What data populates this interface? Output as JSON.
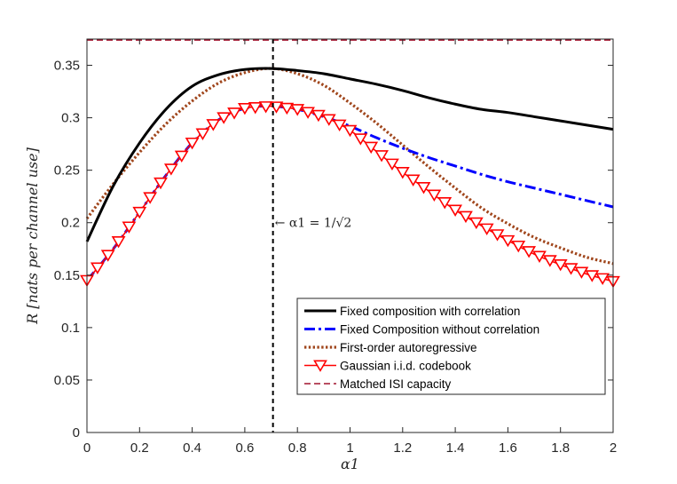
{
  "chart_data": {
    "type": "line",
    "xlabel": "α1",
    "ylabel": "R [nats per channel use]",
    "xlim": [
      0,
      2
    ],
    "ylim": [
      0,
      0.375
    ],
    "xticks": [
      "0",
      "0.2",
      "0.4",
      "0.6",
      "0.8",
      "1",
      "1.2",
      "1.4",
      "1.6",
      "1.8",
      "2"
    ],
    "yticks": [
      "0",
      "0.05",
      "0.1",
      "0.15",
      "0.2",
      "0.25",
      "0.3",
      "0.35"
    ],
    "grid": false,
    "legend_position": "bottom-right",
    "vline": {
      "x": 0.7071,
      "label": "← α1 = 1/√2",
      "label_y": 0.2
    },
    "series": [
      {
        "name": "Fixed composition with correlation",
        "color": "#000000",
        "style": "solid",
        "x": [
          0,
          0.1,
          0.2,
          0.3,
          0.4,
          0.5,
          0.6,
          0.7,
          0.8,
          0.9,
          1.0,
          1.1,
          1.2,
          1.3,
          1.4,
          1.5,
          1.6,
          1.7,
          1.8,
          1.9,
          2.0
        ],
        "y": [
          0.182,
          0.235,
          0.276,
          0.308,
          0.33,
          0.341,
          0.346,
          0.347,
          0.345,
          0.342,
          0.337,
          0.332,
          0.326,
          0.319,
          0.313,
          0.308,
          0.305,
          0.301,
          0.297,
          0.293,
          0.289
        ]
      },
      {
        "name": "Fixed Composition without correlation",
        "color": "#0000ff",
        "style": "dashdot",
        "x": [
          0,
          0.1,
          0.2,
          0.3,
          0.4,
          0.5,
          0.6,
          0.7,
          0.8,
          0.9,
          1.0,
          1.1,
          1.2,
          1.3,
          1.4,
          1.5,
          1.6,
          1.7,
          1.8,
          1.9,
          2.0
        ],
        "y": [
          0.145,
          0.175,
          0.21,
          0.245,
          0.276,
          0.298,
          0.309,
          0.311,
          0.308,
          0.301,
          0.292,
          0.281,
          0.271,
          0.262,
          0.254,
          0.246,
          0.239,
          0.233,
          0.227,
          0.221,
          0.215
        ]
      },
      {
        "name": "First-order autoregressive",
        "color": "#a0461c",
        "style": "dotted",
        "x": [
          0,
          0.1,
          0.2,
          0.3,
          0.4,
          0.5,
          0.6,
          0.7,
          0.8,
          0.9,
          1.0,
          1.1,
          1.2,
          1.3,
          1.4,
          1.5,
          1.6,
          1.7,
          1.8,
          1.9,
          2.0
        ],
        "y": [
          0.204,
          0.237,
          0.267,
          0.294,
          0.316,
          0.333,
          0.343,
          0.347,
          0.342,
          0.331,
          0.314,
          0.295,
          0.274,
          0.253,
          0.233,
          0.214,
          0.199,
          0.186,
          0.176,
          0.167,
          0.161
        ]
      },
      {
        "name": "Gaussian i.i.d. codebook",
        "color": "#ff0000",
        "style": "solid",
        "marker": "triangle-down",
        "x": [
          0,
          0.1,
          0.2,
          0.3,
          0.4,
          0.5,
          0.6,
          0.7,
          0.8,
          0.9,
          1.0,
          1.1,
          1.2,
          1.3,
          1.4,
          1.5,
          1.6,
          1.7,
          1.8,
          1.9,
          2.0
        ],
        "y": [
          0.145,
          0.175,
          0.21,
          0.245,
          0.276,
          0.298,
          0.309,
          0.311,
          0.308,
          0.301,
          0.288,
          0.268,
          0.248,
          0.23,
          0.212,
          0.197,
          0.183,
          0.17,
          0.16,
          0.151,
          0.144
        ]
      },
      {
        "name": "Matched ISI capacity",
        "color": "#a2142f",
        "style": "dashed",
        "x": [
          0,
          2.0
        ],
        "y": [
          0.374,
          0.374
        ]
      }
    ]
  }
}
